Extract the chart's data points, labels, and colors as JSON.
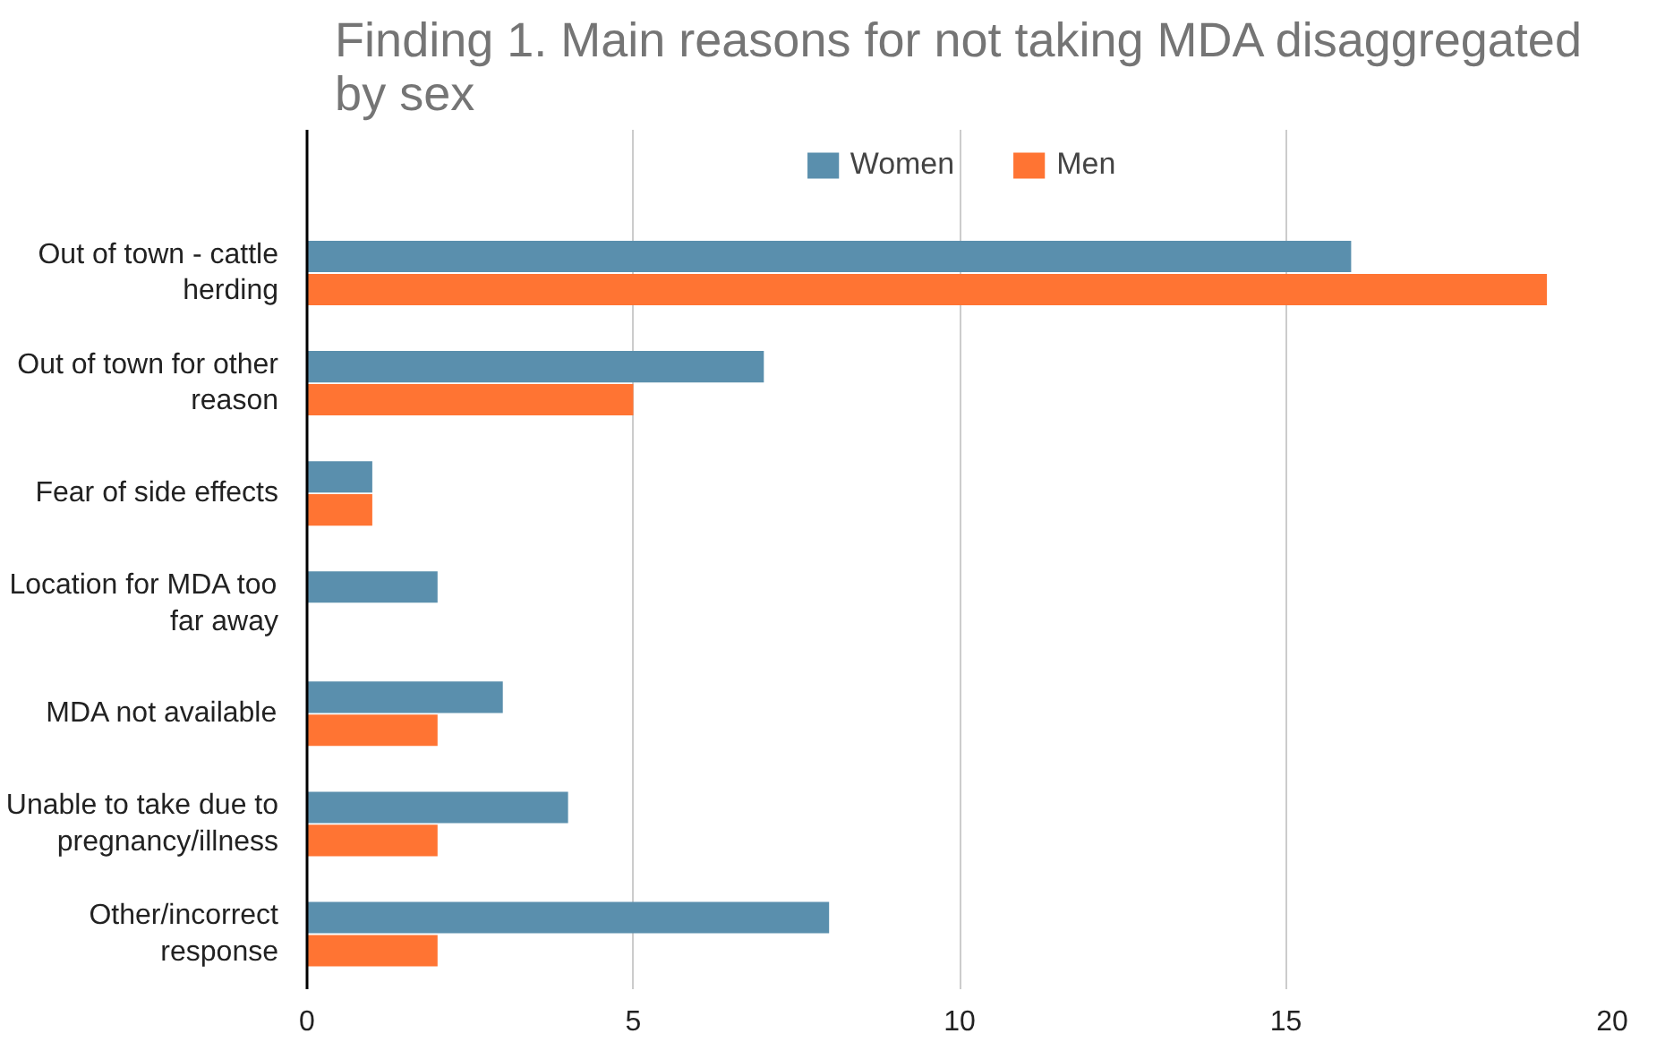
{
  "chart_data": {
    "type": "bar",
    "orientation": "horizontal",
    "title": "Finding 1. Main reasons for not taking MDA disaggregated by sex",
    "categories": [
      "Out of town - cattle herding",
      "Out of town for other reason",
      "Fear of side effects",
      "Location for MDA too far away",
      "MDA not available",
      "Unable to take due to pregnancy/illness",
      "Other/incorrect response"
    ],
    "series": [
      {
        "name": "Women",
        "color": "#5a8fad",
        "values": [
          16,
          7,
          1,
          2,
          3,
          4,
          8
        ]
      },
      {
        "name": "Men",
        "color": "#ff7433",
        "values": [
          19,
          5,
          1,
          0,
          2,
          2,
          2
        ]
      }
    ],
    "xlim": [
      0,
      20
    ],
    "xticks": [
      0,
      5,
      10,
      15,
      20
    ],
    "grid": "x",
    "legend": "top"
  }
}
